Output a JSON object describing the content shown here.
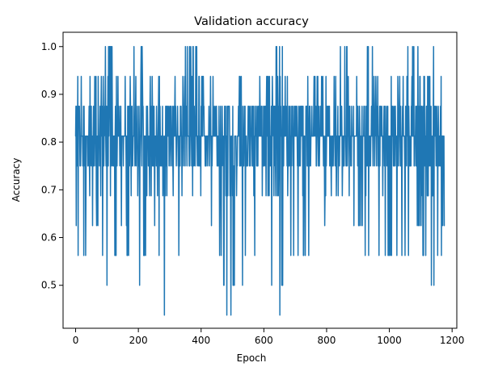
{
  "chart_data": {
    "type": "line",
    "title": "Validation accuracy",
    "xlabel": "Epoch",
    "ylabel": "Accuracy",
    "xlim": [
      -40,
      1215
    ],
    "ylim": [
      0.41,
      1.03
    ],
    "xticks": [
      0,
      200,
      400,
      600,
      800,
      1000,
      1200
    ],
    "yticks": [
      0.5,
      0.6,
      0.7,
      0.8,
      0.9,
      1.0
    ],
    "xtick_labels": [
      "0",
      "200",
      "400",
      "600",
      "800",
      "1000",
      "1200"
    ],
    "ytick_labels": [
      "0.5",
      "0.6",
      "0.7",
      "0.8",
      "0.9",
      "1.0"
    ],
    "grid": false,
    "series": [
      {
        "color": "#1f77b4",
        "x_start": 0,
        "x_end": 1175,
        "value_levels": [
          0.4375,
          0.5,
          0.5625,
          0.625,
          0.6875,
          0.75,
          0.8125,
          0.875,
          0.9375,
          1.0
        ],
        "envelope_min": [
          {
            "x": 0,
            "y": 0.625
          },
          {
            "x": 15,
            "y": 0.5625
          },
          {
            "x": 60,
            "y": 0.625
          },
          {
            "x": 85,
            "y": 0.5625
          },
          {
            "x": 110,
            "y": 0.5
          },
          {
            "x": 150,
            "y": 0.625
          },
          {
            "x": 175,
            "y": 0.5625
          },
          {
            "x": 205,
            "y": 0.5
          },
          {
            "x": 250,
            "y": 0.625
          },
          {
            "x": 285,
            "y": 0.4375
          },
          {
            "x": 320,
            "y": 0.5625
          },
          {
            "x": 360,
            "y": 0.6875
          },
          {
            "x": 410,
            "y": 0.6875
          },
          {
            "x": 450,
            "y": 0.625
          },
          {
            "x": 480,
            "y": 0.4375
          },
          {
            "x": 510,
            "y": 0.5
          },
          {
            "x": 560,
            "y": 0.5625
          },
          {
            "x": 590,
            "y": 0.5625
          },
          {
            "x": 625,
            "y": 0.5
          },
          {
            "x": 645,
            "y": 0.4375
          },
          {
            "x": 690,
            "y": 0.5625
          },
          {
            "x": 730,
            "y": 0.5625
          },
          {
            "x": 770,
            "y": 0.625
          },
          {
            "x": 820,
            "y": 0.6875
          },
          {
            "x": 870,
            "y": 0.6875
          },
          {
            "x": 900,
            "y": 0.625
          },
          {
            "x": 940,
            "y": 0.5625
          },
          {
            "x": 985,
            "y": 0.5625
          },
          {
            "x": 1040,
            "y": 0.5625
          },
          {
            "x": 1090,
            "y": 0.625
          },
          {
            "x": 1145,
            "y": 0.5
          },
          {
            "x": 1175,
            "y": 0.625
          }
        ],
        "envelope_max": [
          {
            "x": 0,
            "y": 0.9375
          },
          {
            "x": 40,
            "y": 1.0
          },
          {
            "x": 70,
            "y": 0.9375
          },
          {
            "x": 110,
            "y": 1.0
          },
          {
            "x": 150,
            "y": 0.9375
          },
          {
            "x": 205,
            "y": 1.0
          },
          {
            "x": 250,
            "y": 0.9375
          },
          {
            "x": 285,
            "y": 0.875
          },
          {
            "x": 330,
            "y": 0.9375
          },
          {
            "x": 365,
            "y": 1.0
          },
          {
            "x": 420,
            "y": 0.9375
          },
          {
            "x": 470,
            "y": 0.875
          },
          {
            "x": 520,
            "y": 0.9375
          },
          {
            "x": 560,
            "y": 0.875
          },
          {
            "x": 610,
            "y": 0.9375
          },
          {
            "x": 665,
            "y": 1.0
          },
          {
            "x": 700,
            "y": 0.875
          },
          {
            "x": 750,
            "y": 0.9375
          },
          {
            "x": 810,
            "y": 0.9375
          },
          {
            "x": 870,
            "y": 1.0
          },
          {
            "x": 900,
            "y": 0.9375
          },
          {
            "x": 935,
            "y": 1.0
          },
          {
            "x": 980,
            "y": 0.875
          },
          {
            "x": 1030,
            "y": 0.9375
          },
          {
            "x": 1075,
            "y": 1.0
          },
          {
            "x": 1110,
            "y": 0.9375
          },
          {
            "x": 1160,
            "y": 1.0
          },
          {
            "x": 1175,
            "y": 0.875
          }
        ]
      }
    ]
  }
}
